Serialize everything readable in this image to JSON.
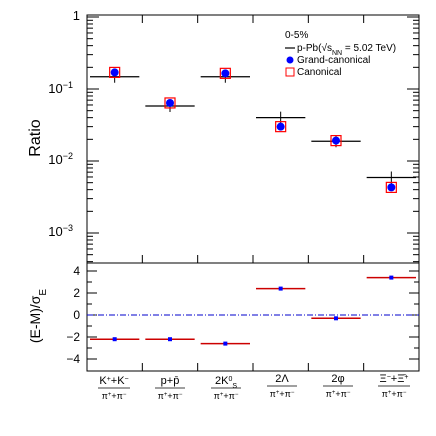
{
  "colors": {
    "data_marker": "#0000ff",
    "model_box": "#ff0000",
    "measurement_line": "#000000",
    "deviation_line": "#cc0000",
    "zero_line": "#0000cc"
  },
  "chart_data": [
    {
      "type": "scatter",
      "ylabel": "Ratio",
      "yscale": "log",
      "ylim": [
        0.0005,
        1
      ],
      "ytick_labels": [
        "1",
        "10^-1",
        "10^-2",
        "10^-3"
      ],
      "categories": [
        "K⁺+K⁻ / π⁺+π⁻",
        "p+p̄ / π⁺+π⁻",
        "2K⁰S / π⁺+π⁻",
        "2Λ / π⁺+π⁻",
        "2φ / π⁺+π⁻",
        "Ξ⁻+Ξ̄⁺ / π⁺+π⁻"
      ],
      "legend": {
        "header": "0-5%",
        "entries": [
          "p-Pb(√sNN = 5.02 TeV)",
          "Grand-canonical",
          "Canonical"
        ]
      },
      "series": [
        {
          "name": "p-Pb(√sNN = 5.02 TeV)",
          "values": [
            0.148,
            0.058,
            0.148,
            0.04,
            0.0188,
            0.0059
          ]
        },
        {
          "name": "Grand-canonical",
          "values": [
            0.17,
            0.064,
            0.165,
            0.03,
            0.0192,
            0.0043
          ]
        },
        {
          "name": "Canonical",
          "values": [
            0.17,
            0.064,
            0.165,
            0.03,
            0.0192,
            0.0043
          ]
        }
      ]
    },
    {
      "type": "scatter",
      "ylabel": "(E-M)/σE",
      "ylim": [
        -5,
        5
      ],
      "ytick_labels": [
        "4",
        "2",
        "0",
        "−2",
        "−4"
      ],
      "categories": [
        "K⁺+K⁻ / π⁺+π⁻",
        "p+p̄ / π⁺+π⁻",
        "2K⁰S / π⁺+π⁻",
        "2Λ / π⁺+π⁻",
        "2φ / π⁺+π⁻",
        "Ξ⁻+Ξ̄⁺ / π⁺+π⁻"
      ],
      "series": [
        {
          "values": [
            -2.2,
            -2.2,
            -2.6,
            2.4,
            -0.3,
            3.4
          ]
        }
      ]
    }
  ]
}
